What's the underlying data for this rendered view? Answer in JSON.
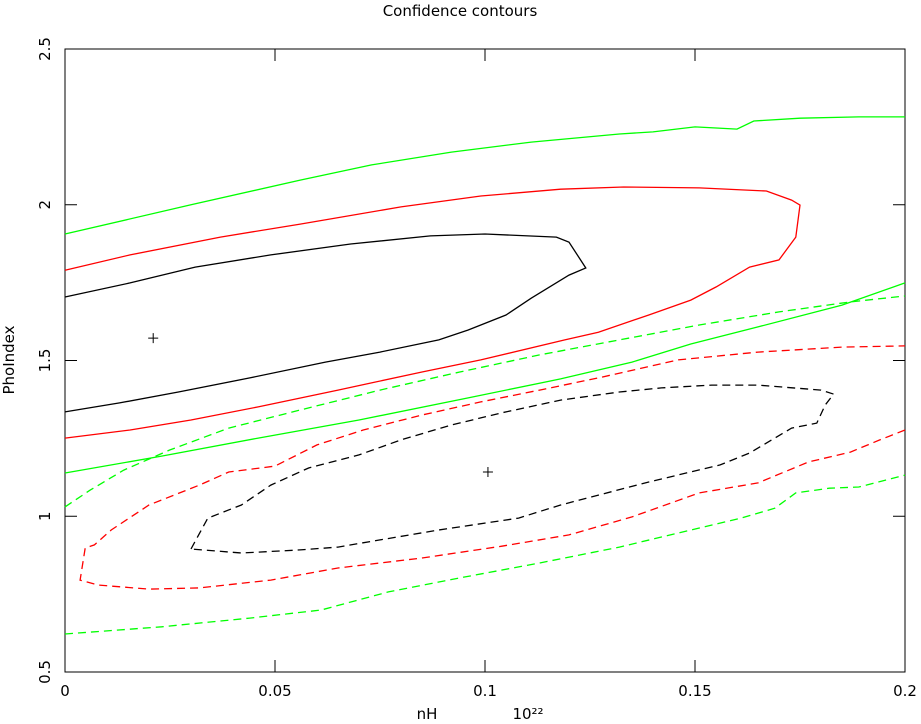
{
  "chart_data": {
    "type": "line",
    "title": "Confidence contours",
    "x_label": "nH",
    "x_label_unit": "10²²",
    "y_label": "PhoIndex",
    "xlim": [
      0,
      0.2
    ],
    "ylim": [
      0.5,
      2.5
    ],
    "xticks": [
      0,
      0.05,
      0.1,
      0.15,
      0.2
    ],
    "yticks": [
      0.5,
      1,
      1.5,
      2,
      2.5
    ],
    "series": [
      {
        "color": "#000000",
        "dash": false,
        "x": [
          0,
          0.0155,
          0.031,
          0.049,
          0.068,
          0.087,
          0.1,
          0.117,
          0.12,
          0.124,
          0.12,
          0.111,
          0.105,
          0.096,
          0.089,
          0.075,
          0.062,
          0.044,
          0.027,
          0.013,
          0
        ],
        "y": [
          1.704,
          1.749,
          1.8,
          1.839,
          1.874,
          1.9,
          1.906,
          1.896,
          1.88,
          1.797,
          1.774,
          1.7,
          1.646,
          1.598,
          1.566,
          1.527,
          1.495,
          1.444,
          1.399,
          1.364,
          1.335
        ]
      },
      {
        "color": "#ff0000",
        "dash": false,
        "x": [
          0,
          0.0155,
          0.037,
          0.056,
          0.08,
          0.099,
          0.118,
          0.133,
          0.151,
          0.167,
          0.173,
          0.175,
          0.174,
          0.17,
          0.163,
          0.155,
          0.149,
          0.139,
          0.127,
          0.119,
          0.099,
          0.085,
          0.065,
          0.046,
          0.03,
          0.0155,
          0
        ],
        "y": [
          1.79,
          1.839,
          1.896,
          1.938,
          1.993,
          2.028,
          2.05,
          2.057,
          2.054,
          2.044,
          2.015,
          1.999,
          1.896,
          1.823,
          1.8,
          1.736,
          1.694,
          1.646,
          1.591,
          1.566,
          1.502,
          1.463,
          1.405,
          1.351,
          1.309,
          1.277,
          1.251
        ]
      },
      {
        "color": "#00ff00",
        "dash": false,
        "x": [
          0,
          0.03,
          0.056,
          0.073,
          0.092,
          0.111,
          0.132,
          0.14,
          0.15,
          0.16,
          0.164,
          0.175,
          0.189,
          0.2
        ],
        "y": [
          1.906,
          2.0,
          2.079,
          2.128,
          2.169,
          2.201,
          2.227,
          2.234,
          2.25,
          2.243,
          2.269,
          2.278,
          2.282,
          2.282
        ]
      },
      {
        "color": "#00ff00",
        "dash": false,
        "x": [
          0,
          0.023,
          0.046,
          0.07,
          0.096,
          0.118,
          0.135,
          0.149,
          0.165,
          0.185,
          0.2
        ],
        "y": [
          1.139,
          1.193,
          1.251,
          1.309,
          1.38,
          1.441,
          1.495,
          1.553,
          1.608,
          1.678,
          1.749
        ]
      },
      {
        "color": "#000000",
        "dash": true,
        "x": [
          0.03,
          0.034,
          0.042,
          0.049,
          0.058,
          0.07,
          0.08,
          0.092,
          0.104,
          0.118,
          0.132,
          0.142,
          0.154,
          0.165,
          0.18,
          0.183,
          0.181,
          0.179,
          0.173,
          0.163,
          0.156,
          0.139,
          0.127,
          0.118,
          0.108,
          0.089,
          0.075,
          0.065,
          0.056,
          0.042,
          0.03
        ],
        "y": [
          0.895,
          0.994,
          1.036,
          1.1,
          1.155,
          1.197,
          1.245,
          1.293,
          1.332,
          1.373,
          1.399,
          1.412,
          1.421,
          1.421,
          1.405,
          1.392,
          1.357,
          1.299,
          1.283,
          1.203,
          1.165,
          1.11,
          1.068,
          1.036,
          0.994,
          0.956,
          0.924,
          0.901,
          0.892,
          0.882,
          0.895
        ]
      },
      {
        "color": "#ff0000",
        "dash": true,
        "x": [
          0.2,
          0.194,
          0.187,
          0.177,
          0.165,
          0.151,
          0.135,
          0.12,
          0.104,
          0.085,
          0.065,
          0.049,
          0.032,
          0.02,
          0.008,
          0.0036,
          0.0048,
          0.007,
          0.011,
          0.02,
          0.032,
          0.039,
          0.05,
          0.06,
          0.071,
          0.085,
          0.099,
          0.113,
          0.127,
          0.146,
          0.165,
          0.185,
          0.2
        ],
        "y": [
          1.277,
          1.245,
          1.206,
          1.174,
          1.107,
          1.075,
          0.998,
          0.94,
          0.904,
          0.866,
          0.834,
          0.795,
          0.77,
          0.766,
          0.779,
          0.795,
          0.898,
          0.908,
          0.956,
          1.036,
          1.1,
          1.142,
          1.161,
          1.229,
          1.277,
          1.325,
          1.367,
          1.405,
          1.444,
          1.502,
          1.527,
          1.543,
          1.547
        ]
      },
      {
        "color": "#00ff00",
        "dash": true,
        "x": [
          0,
          0.006,
          0.014,
          0.025,
          0.039,
          0.056,
          0.075,
          0.094,
          0.113,
          0.132,
          0.151,
          0.17,
          0.187,
          0.2
        ],
        "y": [
          1.03,
          1.084,
          1.148,
          1.213,
          1.283,
          1.341,
          1.405,
          1.463,
          1.518,
          1.566,
          1.614,
          1.656,
          1.688,
          1.707
        ]
      },
      {
        "color": "#00ff00",
        "dash": true,
        "x": [
          0,
          0.023,
          0.044,
          0.061,
          0.077,
          0.094,
          0.113,
          0.132,
          0.149,
          0.161,
          0.169,
          0.174,
          0.182,
          0.189,
          0.2
        ],
        "y": [
          0.622,
          0.645,
          0.673,
          0.699,
          0.757,
          0.802,
          0.85,
          0.901,
          0.956,
          0.994,
          1.026,
          1.075,
          1.09,
          1.094,
          1.132
        ]
      }
    ],
    "best_fit": {
      "x": [
        0.021,
        0.1007
      ],
      "y": [
        1.572,
        1.142
      ]
    }
  }
}
